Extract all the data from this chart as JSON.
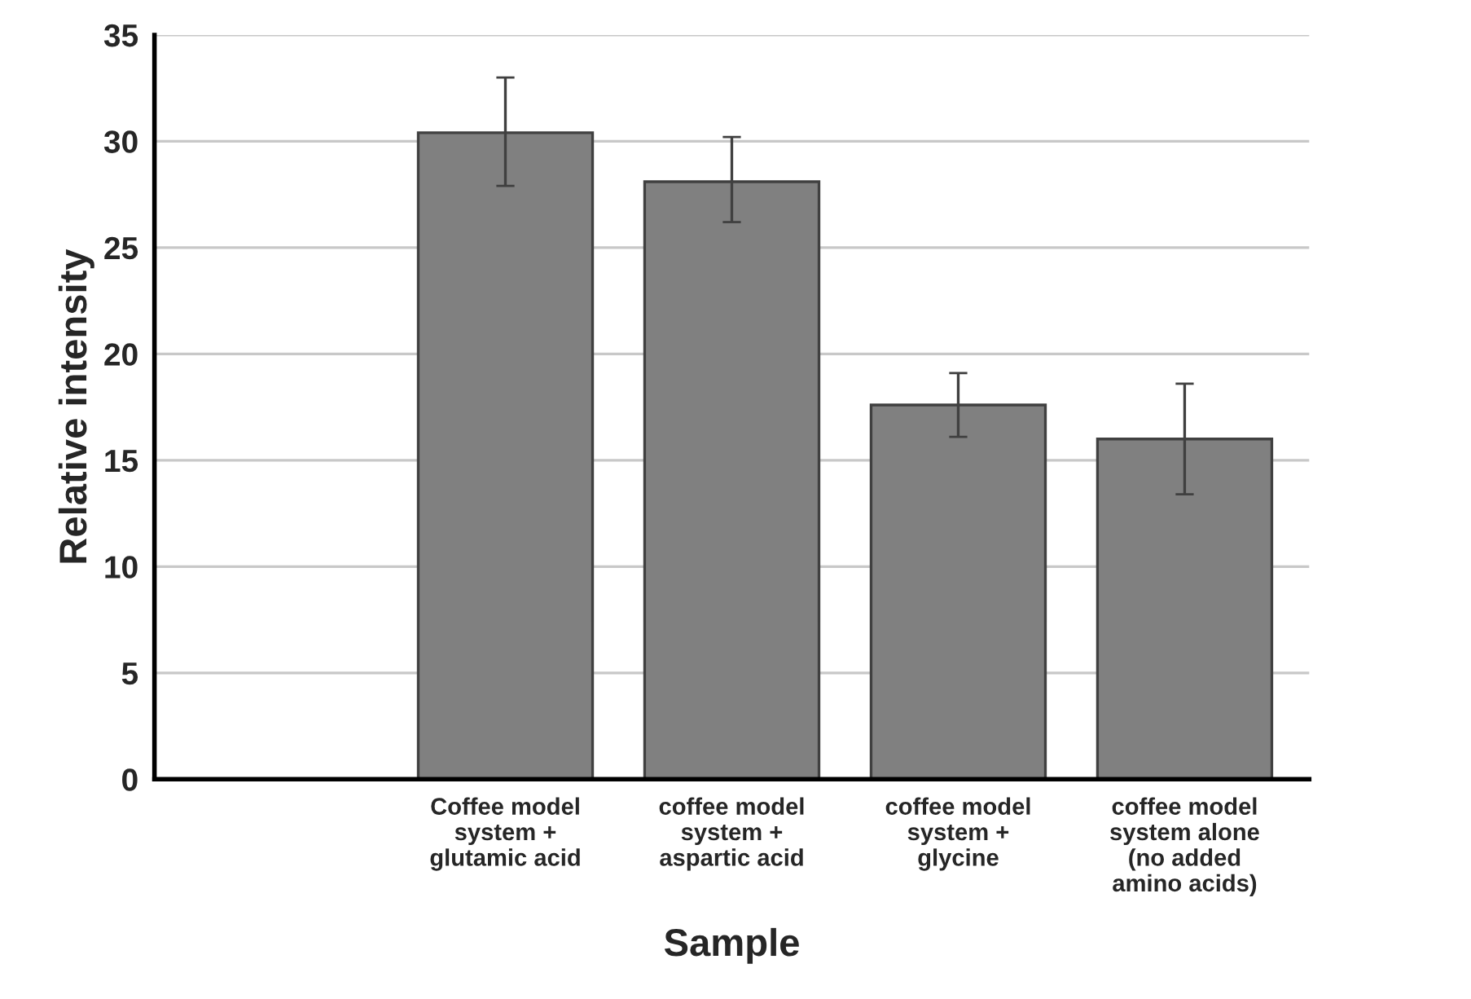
{
  "chart_data": {
    "type": "bar",
    "xlabel": "Sample",
    "ylabel": "Relative intensity",
    "categories": [
      null,
      "Coffee model\nsystem +\nglutamic acid",
      "coffee model\nsystem +\naspartic acid",
      "coffee model\nsystem +\nglycine",
      "coffee model\nsystem alone\n(no added\namino acids)"
    ],
    "values": [
      null,
      30.4,
      28.1,
      17.6,
      16.0
    ],
    "errors": [
      null,
      [
        27.9,
        33.0
      ],
      [
        26.2,
        30.2
      ],
      [
        16.1,
        19.1
      ],
      [
        13.4,
        18.6
      ]
    ],
    "color": "#808080",
    "ylim": [
      0,
      35
    ],
    "yticks": [
      0,
      5,
      10,
      15,
      20,
      25,
      30,
      35
    ],
    "grid": "y",
    "legend": false
  }
}
